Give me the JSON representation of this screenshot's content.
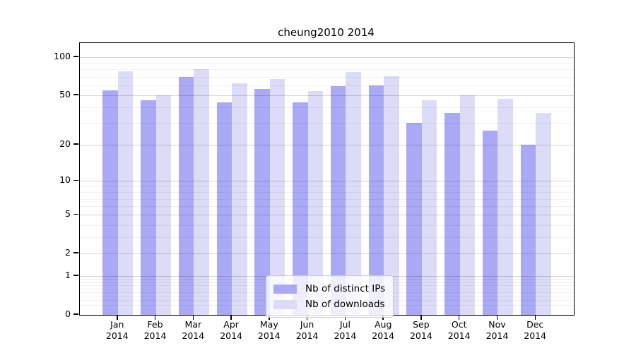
{
  "title": "cheung2010 2014",
  "chart_data": {
    "type": "bar",
    "title": "cheung2010 2014",
    "categories": [
      "Jan",
      "Feb",
      "Mar",
      "Apr",
      "May",
      "Jun",
      "Jul",
      "Aug",
      "Sep",
      "Oct",
      "Nov",
      "Dec"
    ],
    "year_label": "2014",
    "series": [
      {
        "name": "Nb of distinct IPs",
        "color": "#a9a9f5",
        "values": [
          55,
          46,
          70,
          44,
          56,
          44,
          59,
          60,
          30,
          36,
          26,
          20
        ]
      },
      {
        "name": "Nb of downloads",
        "color": "#dcdcf8",
        "values": [
          77,
          50,
          80,
          62,
          67,
          54,
          76,
          71,
          46,
          50,
          47,
          36
        ]
      }
    ],
    "yscale": "log1p",
    "yticks": [
      0,
      1,
      2,
      5,
      10,
      20,
      50,
      100
    ],
    "minor_yticks": [
      0.2,
      0.3,
      0.4,
      0.5,
      0.6,
      0.7,
      0.8,
      0.9,
      3,
      4,
      6,
      7,
      8,
      9,
      30,
      40,
      60,
      70,
      80,
      90
    ],
    "ylim": [
      0,
      129
    ],
    "xlabel": "",
    "ylabel": "",
    "grid": true,
    "legend_position": "lower center"
  }
}
